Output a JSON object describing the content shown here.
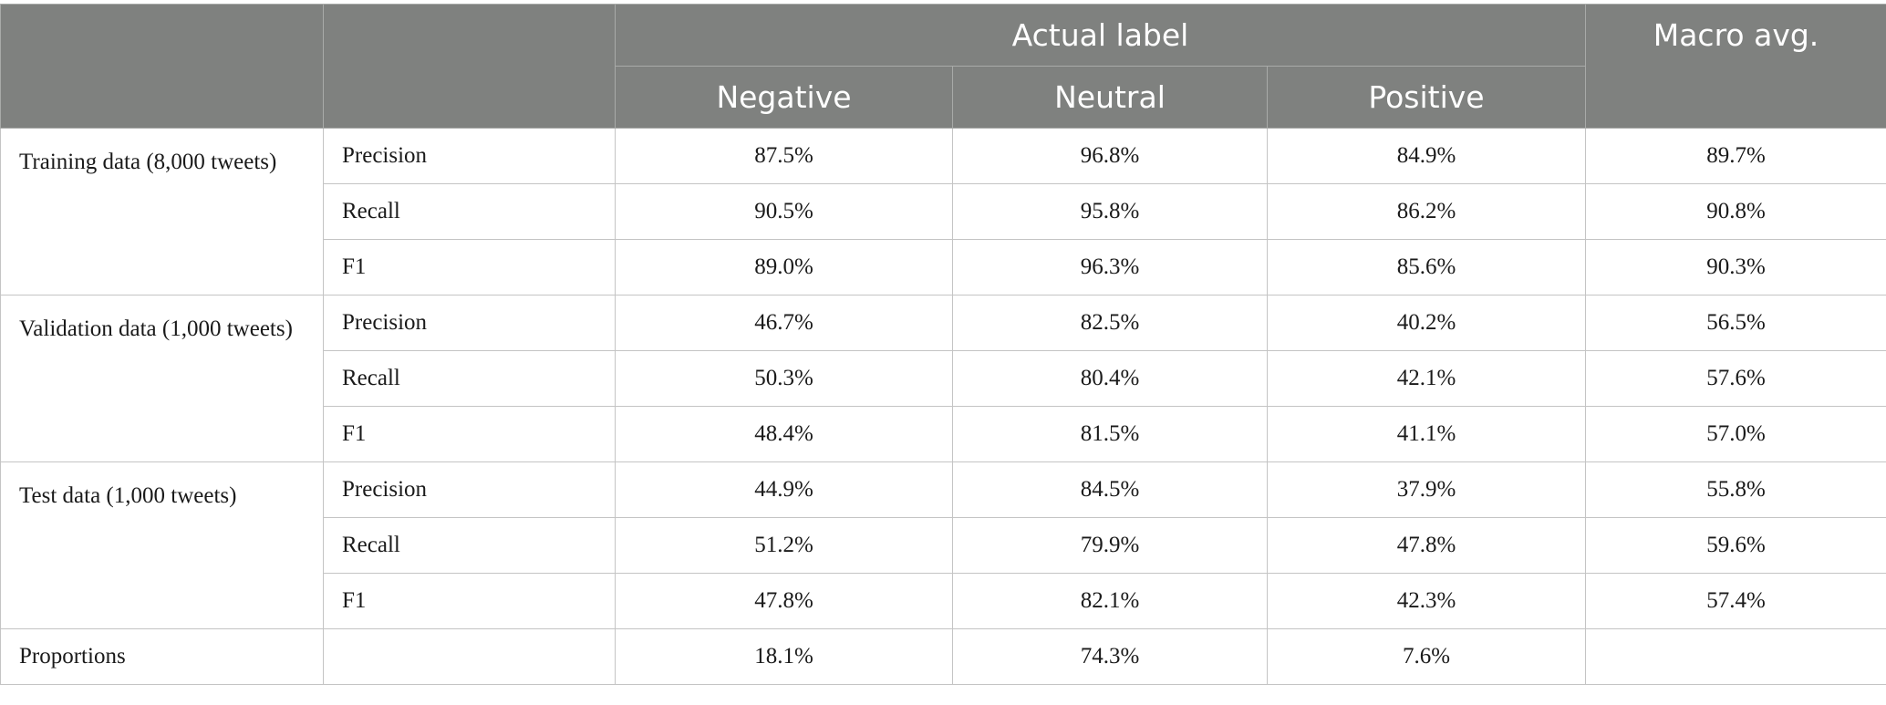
{
  "header": {
    "actual_label": "Actual label",
    "macro_avg": "Macro avg.",
    "classes": [
      "Negative",
      "Neutral",
      "Positive"
    ]
  },
  "groups": [
    {
      "label": "Training data (8,000 tweets)",
      "rows": [
        {
          "metric": "Precision",
          "values": [
            "87.5%",
            "96.8%",
            "84.9%"
          ],
          "macro": "89.7%"
        },
        {
          "metric": "Recall",
          "values": [
            "90.5%",
            "95.8%",
            "86.2%"
          ],
          "macro": "90.8%"
        },
        {
          "metric": "F1",
          "values": [
            "89.0%",
            "96.3%",
            "85.6%"
          ],
          "macro": "90.3%"
        }
      ]
    },
    {
      "label": "Validation data (1,000 tweets)",
      "rows": [
        {
          "metric": "Precision",
          "values": [
            "46.7%",
            "82.5%",
            "40.2%"
          ],
          "macro": "56.5%"
        },
        {
          "metric": "Recall",
          "values": [
            "50.3%",
            "80.4%",
            "42.1%"
          ],
          "macro": "57.6%"
        },
        {
          "metric": "F1",
          "values": [
            "48.4%",
            "81.5%",
            "41.1%"
          ],
          "macro": "57.0%"
        }
      ]
    },
    {
      "label": "Test data (1,000 tweets)",
      "rows": [
        {
          "metric": "Precision",
          "values": [
            "44.9%",
            "84.5%",
            "37.9%"
          ],
          "macro": "55.8%"
        },
        {
          "metric": "Recall",
          "values": [
            "51.2%",
            "79.9%",
            "47.8%"
          ],
          "macro": "59.6%"
        },
        {
          "metric": "F1",
          "values": [
            "47.8%",
            "82.1%",
            "42.3%"
          ],
          "macro": "57.4%"
        }
      ]
    }
  ],
  "proportions": {
    "label": "Proportions",
    "values": [
      "18.1%",
      "74.3%",
      "7.6%"
    ]
  }
}
